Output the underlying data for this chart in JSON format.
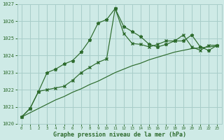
{
  "xlabel": "Graphe pression niveau de la mer (hPa)",
  "background_color": "#ceeae6",
  "grid_color": "#a8cdc9",
  "line_color": "#2d6b2d",
  "x_values": [
    0,
    1,
    2,
    3,
    4,
    5,
    6,
    7,
    8,
    9,
    10,
    11,
    12,
    13,
    14,
    15,
    16,
    17,
    18,
    19,
    20,
    21,
    22,
    23
  ],
  "y_main": [
    1020.4,
    1020.9,
    1021.9,
    1023.0,
    1023.2,
    1023.5,
    1023.7,
    1024.2,
    1024.9,
    1025.9,
    1026.1,
    1026.75,
    1025.7,
    1025.4,
    1025.1,
    1024.65,
    1024.5,
    1024.65,
    1024.85,
    1024.85,
    1025.2,
    1024.5,
    1024.3,
    1024.6
  ],
  "y_second": [
    1020.4,
    1020.9,
    1021.9,
    1022.0,
    1022.1,
    1022.2,
    1022.55,
    1023.0,
    1023.3,
    1023.6,
    1023.8,
    1026.75,
    1025.3,
    1024.7,
    1024.65,
    1024.5,
    1024.65,
    1024.85,
    1024.85,
    1025.2,
    1024.5,
    1024.3,
    1024.6,
    1024.6
  ],
  "y_trend": [
    1020.4,
    1020.65,
    1020.9,
    1021.15,
    1021.4,
    1021.6,
    1021.85,
    1022.05,
    1022.3,
    1022.5,
    1022.75,
    1023.0,
    1023.2,
    1023.4,
    1023.55,
    1023.75,
    1023.9,
    1024.05,
    1024.2,
    1024.3,
    1024.4,
    1024.45,
    1024.5,
    1024.55
  ],
  "ylim": [
    1020,
    1027
  ],
  "yticks": [
    1020,
    1021,
    1022,
    1023,
    1024,
    1025,
    1026,
    1027
  ]
}
